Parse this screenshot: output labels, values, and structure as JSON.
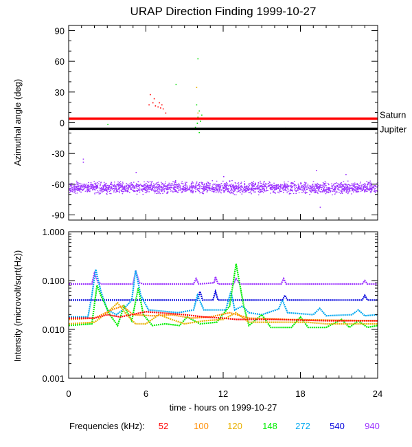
{
  "chart_data": {
    "title": "URAP Direction Finding  1999-10-27",
    "x_axis": {
      "label": "time - hours on 1999-10-27",
      "range": [
        0,
        24
      ],
      "tick_labels": [
        "0",
        "6",
        "12",
        "18",
        "24"
      ],
      "tick_values": [
        0,
        6,
        12,
        18,
        24
      ]
    },
    "panels": [
      {
        "type": "scatter",
        "ylabel": "Azimuthal angle (deg)",
        "ylim": [
          -95,
          95
        ],
        "tick_labels": [
          "90",
          "60",
          "30",
          "0",
          "-30",
          "-60",
          "-90"
        ],
        "tick_values": [
          90,
          60,
          30,
          0,
          -30,
          -60,
          -90
        ],
        "reference_lines": [
          {
            "name": "Saturn",
            "y": 4,
            "color": "#ff0000"
          },
          {
            "name": "Jupiter",
            "y": -6,
            "color": "#000000"
          }
        ],
        "series": [
          {
            "name": "940",
            "color": "#9b30ff",
            "band": {
              "center": -63,
              "spread": 8,
              "x_range": [
                0,
                24
              ]
            },
            "outliers": [
              [
                1.1,
                -35
              ],
              [
                1.1,
                -38
              ],
              [
                19.2,
                -46
              ],
              [
                19.5,
                -82
              ],
              [
                21.5,
                -50
              ],
              [
                12.0,
                -52
              ],
              [
                5.2,
                -48
              ]
            ]
          },
          {
            "name": "52",
            "color": "#ff0000",
            "points": [
              [
                6.3,
                28
              ],
              [
                6.5,
                20
              ],
              [
                6.7,
                17
              ],
              [
                6.9,
                16
              ],
              [
                7.0,
                20
              ],
              [
                7.2,
                18
              ],
              [
                7.3,
                14
              ],
              [
                7.5,
                10
              ],
              [
                6.2,
                18
              ],
              [
                6.6,
                24
              ],
              [
                7.1,
                15
              ]
            ]
          },
          {
            "name": "148",
            "color": "#00dd00",
            "points": [
              [
                10.0,
                63
              ],
              [
                9.9,
                18
              ],
              [
                10.1,
                12
              ],
              [
                10.0,
                6
              ],
              [
                10.2,
                2
              ],
              [
                9.8,
                -4
              ],
              [
                10.1,
                -9
              ],
              [
                10.3,
                8
              ],
              [
                9.95,
                0
              ],
              [
                8.3,
                38
              ],
              [
                3.0,
                -1
              ],
              [
                16.8,
                -5
              ]
            ]
          },
          {
            "name": "120",
            "color": "#e8b000",
            "points": [
              [
                9.9,
                35
              ],
              [
                10.0,
                10
              ]
            ]
          }
        ]
      },
      {
        "type": "line",
        "yscale": "log",
        "ylabel": "Intensity (microvolt/sqrt(Hz))",
        "ylim": [
          0.001,
          1.0
        ],
        "tick_labels": [
          "1.000",
          "0.100",
          "0.010",
          "0.001"
        ],
        "tick_values": [
          1.0,
          0.1,
          0.01,
          0.001
        ],
        "series": [
          {
            "name": "940",
            "color": "#9b30ff",
            "values": [
              [
                0,
                0.085
              ],
              [
                1.8,
                0.085
              ],
              [
                2.0,
                0.14
              ],
              [
                2.3,
                0.09
              ],
              [
                2.6,
                0.085
              ],
              [
                5.0,
                0.085
              ],
              [
                5.2,
                0.16
              ],
              [
                5.5,
                0.09
              ],
              [
                5.8,
                0.085
              ],
              [
                9.7,
                0.085
              ],
              [
                9.9,
                0.11
              ],
              [
                10.1,
                0.085
              ],
              [
                11.3,
                0.09
              ],
              [
                11.4,
                0.12
              ],
              [
                11.6,
                0.085
              ],
              [
                12.8,
                0.085
              ],
              [
                13.0,
                0.11
              ],
              [
                13.3,
                0.085
              ],
              [
                16.5,
                0.085
              ],
              [
                16.7,
                0.11
              ],
              [
                16.9,
                0.085
              ],
              [
                22.8,
                0.085
              ],
              [
                23.0,
                0.1
              ],
              [
                23.2,
                0.085
              ],
              [
                24,
                0.085
              ]
            ]
          },
          {
            "name": "540",
            "color": "#0000dd",
            "values": [
              [
                0,
                0.04
              ],
              [
                10.0,
                0.04
              ],
              [
                10.2,
                0.06
              ],
              [
                10.4,
                0.04
              ],
              [
                11.2,
                0.04
              ],
              [
                11.4,
                0.06
              ],
              [
                11.6,
                0.04
              ],
              [
                16.6,
                0.04
              ],
              [
                16.8,
                0.05
              ],
              [
                17.0,
                0.04
              ],
              [
                22.8,
                0.04
              ],
              [
                23.0,
                0.05
              ],
              [
                23.2,
                0.04
              ],
              [
                24,
                0.04
              ]
            ]
          },
          {
            "name": "272",
            "color": "#00a8f0",
            "values": [
              [
                0,
                0.018
              ],
              [
                1.5,
                0.018
              ],
              [
                1.8,
                0.05
              ],
              [
                2.1,
                0.17
              ],
              [
                2.5,
                0.06
              ],
              [
                3.0,
                0.025
              ],
              [
                3.7,
                0.02
              ],
              [
                4.2,
                0.025
              ],
              [
                4.9,
                0.04
              ],
              [
                5.2,
                0.16
              ],
              [
                5.6,
                0.05
              ],
              [
                6.2,
                0.025
              ],
              [
                7.0,
                0.024
              ],
              [
                8.5,
                0.022
              ],
              [
                9.7,
                0.025
              ],
              [
                10.0,
                0.05
              ],
              [
                10.5,
                0.025
              ],
              [
                11.2,
                0.025
              ],
              [
                12.2,
                0.025
              ],
              [
                12.6,
                0.06
              ],
              [
                12.9,
                0.025
              ],
              [
                13.5,
                0.03
              ],
              [
                14.0,
                0.022
              ],
              [
                15.0,
                0.02
              ],
              [
                16.3,
                0.026
              ],
              [
                16.6,
                0.04
              ],
              [
                17.0,
                0.022
              ],
              [
                19.0,
                0.02
              ],
              [
                19.5,
                0.027
              ],
              [
                20.0,
                0.019
              ],
              [
                22.0,
                0.02
              ],
              [
                22.5,
                0.025
              ],
              [
                23.0,
                0.019
              ],
              [
                24,
                0.02
              ]
            ]
          },
          {
            "name": "148",
            "color": "#00ee00",
            "values": [
              [
                0,
                0.012
              ],
              [
                1.8,
                0.013
              ],
              [
                2.2,
                0.08
              ],
              [
                2.5,
                0.05
              ],
              [
                3.2,
                0.02
              ],
              [
                3.8,
                0.012
              ],
              [
                4.3,
                0.03
              ],
              [
                4.9,
                0.015
              ],
              [
                5.4,
                0.07
              ],
              [
                5.8,
                0.02
              ],
              [
                6.5,
                0.012
              ],
              [
                7.5,
                0.013
              ],
              [
                8.6,
                0.012
              ],
              [
                9.2,
                0.018
              ],
              [
                10.2,
                0.013
              ],
              [
                11.5,
                0.014
              ],
              [
                12.5,
                0.03
              ],
              [
                13.0,
                0.22
              ],
              [
                13.6,
                0.03
              ],
              [
                14.0,
                0.012
              ],
              [
                15.0,
                0.02
              ],
              [
                15.7,
                0.011
              ],
              [
                17.3,
                0.011
              ],
              [
                18.0,
                0.018
              ],
              [
                18.6,
                0.011
              ],
              [
                20.0,
                0.011
              ],
              [
                21.2,
                0.016
              ],
              [
                21.8,
                0.011
              ],
              [
                22.5,
                0.015
              ],
              [
                23.2,
                0.011
              ],
              [
                24,
                0.012
              ]
            ]
          },
          {
            "name": "120",
            "color": "#e8b000",
            "values": [
              [
                0,
                0.013
              ],
              [
                2.0,
                0.014
              ],
              [
                3.0,
                0.022
              ],
              [
                3.8,
                0.035
              ],
              [
                4.5,
                0.02
              ],
              [
                5.2,
                0.013
              ],
              [
                6.0,
                0.013
              ],
              [
                7.0,
                0.02
              ],
              [
                8.0,
                0.016
              ],
              [
                9.0,
                0.013
              ],
              [
                10.5,
                0.015
              ],
              [
                12.0,
                0.016
              ],
              [
                13.0,
                0.022
              ],
              [
                14.0,
                0.014
              ],
              [
                16.0,
                0.014
              ],
              [
                18.5,
                0.014
              ],
              [
                20.0,
                0.013
              ],
              [
                24,
                0.013
              ]
            ]
          },
          {
            "name": "100",
            "color": "#ff8c00",
            "values": [
              [
                0,
                0.016
              ],
              [
                2.0,
                0.017
              ],
              [
                3.5,
                0.026
              ],
              [
                4.2,
                0.03
              ],
              [
                5.0,
                0.02
              ],
              [
                6.5,
                0.019
              ],
              [
                8.0,
                0.02
              ],
              [
                9.5,
                0.017
              ],
              [
                11.0,
                0.018
              ],
              [
                12.5,
                0.022
              ],
              [
                14.0,
                0.017
              ],
              [
                17.0,
                0.016
              ],
              [
                24,
                0.015
              ]
            ]
          },
          {
            "name": "52",
            "color": "#ff0000",
            "values": [
              [
                0,
                0.017
              ],
              [
                2.0,
                0.017
              ],
              [
                3.0,
                0.02
              ],
              [
                4.0,
                0.018
              ],
              [
                6.0,
                0.023
              ],
              [
                7.0,
                0.022
              ],
              [
                9.0,
                0.02
              ],
              [
                10.5,
                0.018
              ],
              [
                12.0,
                0.017
              ],
              [
                13.0,
                0.016
              ],
              [
                16.0,
                0.016
              ],
              [
                20.0,
                0.015
              ],
              [
                24,
                0.015
              ]
            ]
          }
        ]
      }
    ],
    "legend": {
      "label": "Frequencies (kHz):",
      "entries": [
        {
          "name": "52",
          "color": "#ff0000"
        },
        {
          "name": "100",
          "color": "#ff8c00"
        },
        {
          "name": "120",
          "color": "#e8b000"
        },
        {
          "name": "148",
          "color": "#00ee00"
        },
        {
          "name": "272",
          "color": "#00a8f0"
        },
        {
          "name": "540",
          "color": "#0000dd"
        },
        {
          "name": "940",
          "color": "#9b30ff"
        }
      ]
    }
  }
}
